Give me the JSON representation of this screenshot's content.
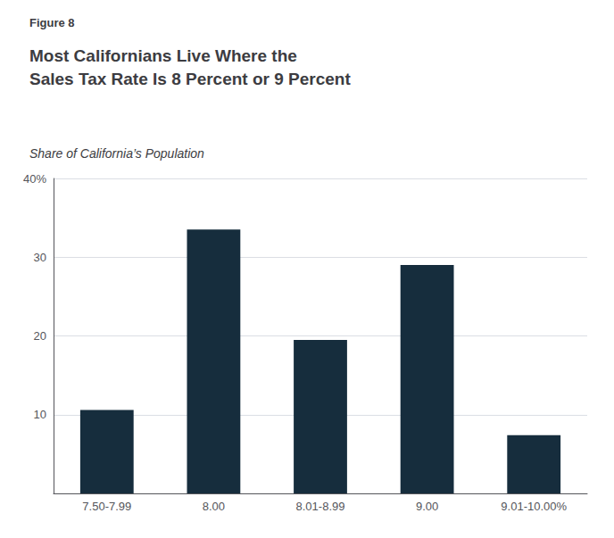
{
  "chart_data": {
    "type": "bar",
    "title": "Most Californians Live Where the\nSales Tax Rate Is 8 Percent or 9 Percent",
    "subtitle": "Share of California’s Population",
    "annotations": [
      "Figure 8"
    ],
    "categories": [
      "7.50-7.99",
      "8.00",
      "8.01-8.99",
      "9.00",
      "9.01-10.00%"
    ],
    "values": [
      10.6,
      33.5,
      19.5,
      29.0,
      7.4
    ],
    "color": "#162D3D",
    "ylim": [
      0,
      40
    ],
    "yticks": [
      10,
      20,
      30,
      {
        "value": 40,
        "label": "40%"
      }
    ],
    "grid": true
  }
}
